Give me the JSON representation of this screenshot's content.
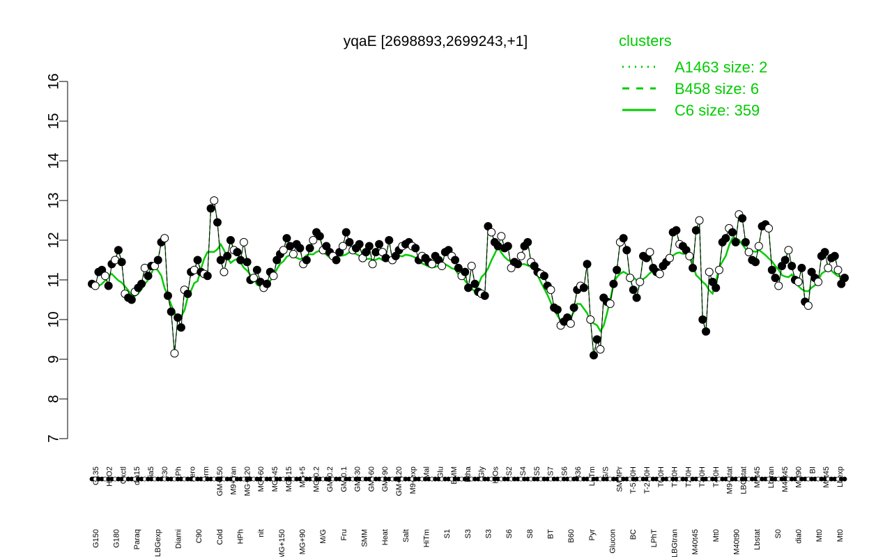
{
  "chart_data": {
    "type": "scatter",
    "title": "yqaE [2698893,2699243,+1]",
    "xlabel": "",
    "ylabel": "",
    "ylim": [
      7,
      16
    ],
    "y_ticks": [
      7,
      8,
      9,
      10,
      11,
      12,
      13,
      14,
      15,
      16
    ],
    "legend": {
      "title": "clusters",
      "placement": "top-right",
      "entries": [
        {
          "label": "A1463 size: 2",
          "style": "dotted",
          "color": "#00cc00"
        },
        {
          "label": "B458 size: 6",
          "style": "dashed",
          "color": "#00cc00"
        },
        {
          "label": "C6 size: 359",
          "style": "solid",
          "color": "#00cc00"
        }
      ]
    },
    "x_labels_upper": [
      "G135",
      "H2O2",
      "Oxctl",
      "dia15",
      "dia5",
      "C30",
      "LPh",
      "aero",
      "ferm",
      "GM+150",
      "M9+tran",
      "MG+120",
      "MG+60",
      "MG+45",
      "MG+15",
      "MG+5",
      "MG-0.2",
      "GM-0.2",
      "GM-0.1",
      "GM+30",
      "GM+60",
      "GM+90",
      "GM+120",
      "M9+exp",
      "Mal",
      "Glu",
      "BMM",
      "Etha",
      "Gly",
      "HiOs",
      "S2",
      "S4",
      "S5",
      "S7",
      "S6",
      "B36",
      "LoTm",
      "G/S",
      "SMMPr",
      "T-5.40H",
      "T-2.40H",
      "T0.0H",
      "T1.0H",
      "T2.0H",
      "T3.0H",
      "T4.0H",
      "M9+stat",
      "LBGstat",
      "M0t45",
      "Lbtran",
      "M40t45",
      "M0t90",
      "BI",
      "M0t45",
      "Lbexp"
    ],
    "x_labels_lower": [
      "G150",
      "G180",
      "Paraq",
      "LBGexp",
      "Diami",
      "C90",
      "Cold",
      "HPh",
      "nit",
      "MG+150",
      "MG+90",
      "M/G",
      "Fru",
      "SMM",
      "Heat",
      "Salt",
      "HiTm",
      "S1",
      "S3",
      "S3",
      "S6",
      "S8",
      "BT",
      "B60",
      "Pyr",
      "Glucon",
      "BC",
      "LPhT",
      "LBGtran",
      "M40t45",
      "Mt0",
      "M40t90",
      "Lbstat",
      "S0",
      "dia0",
      "Mt0",
      "Mt0"
    ],
    "series": [
      {
        "name": "yqaE",
        "values": [
          10.9,
          10.85,
          11.2,
          11.25,
          11.1,
          10.85,
          11.4,
          11.5,
          11.75,
          11.45,
          10.65,
          10.55,
          10.5,
          10.7,
          10.8,
          10.9,
          11.3,
          11.1,
          11.35,
          11.35,
          11.5,
          11.95,
          12.05,
          10.6,
          10.2,
          9.15,
          10.05,
          9.8,
          10.75,
          10.65,
          11.2,
          11.25,
          11.5,
          11.2,
          11.15,
          11.1,
          12.8,
          13.0,
          12.45,
          11.5,
          11.2,
          11.6,
          12.0,
          11.75,
          11.7,
          11.5,
          11.95,
          11.45,
          11.0,
          11.05,
          11.25,
          10.95,
          10.8,
          10.9,
          11.2,
          11.1,
          11.5,
          11.65,
          11.75,
          12.05,
          11.85,
          11.65,
          11.9,
          11.8,
          11.4,
          11.5,
          11.8,
          12.0,
          12.2,
          12.1,
          11.75,
          11.85,
          11.7,
          11.6,
          11.5,
          11.7,
          11.85,
          12.2,
          11.95,
          11.75,
          11.8,
          11.9,
          11.55,
          11.7,
          11.85,
          11.4,
          11.7,
          11.9,
          11.7,
          11.55,
          12.0,
          11.5,
          11.6,
          11.75,
          11.85,
          11.9,
          11.95,
          11.85,
          11.8,
          11.5,
          11.6,
          11.55,
          11.45,
          11.4,
          11.6,
          11.5,
          11.35,
          11.7,
          11.75,
          11.6,
          11.5,
          11.3,
          11.1,
          11.2,
          10.8,
          11.35,
          10.9,
          10.7,
          10.65,
          10.6,
          12.35,
          12.2,
          11.95,
          11.85,
          12.1,
          11.8,
          11.85,
          11.3,
          11.45,
          11.4,
          11.6,
          11.85,
          11.95,
          11.45,
          11.35,
          11.2,
          11.15,
          11.1,
          10.85,
          10.75,
          10.3,
          10.25,
          9.85,
          9.95,
          10.05,
          9.9,
          10.3,
          10.75,
          10.85,
          10.8,
          11.4,
          10.0,
          9.1,
          9.5,
          9.25,
          10.55,
          10.45,
          10.4,
          10.9,
          11.25,
          11.95,
          12.05,
          11.75,
          11.05,
          10.75,
          10.55,
          10.95,
          11.6,
          11.55,
          11.7,
          11.3,
          11.2,
          11.15,
          11.35,
          11.45,
          11.55,
          12.2,
          12.25,
          11.9,
          11.85,
          11.75,
          11.6,
          11.3,
          12.25,
          12.5,
          10.0,
          9.7,
          11.2,
          10.95,
          10.8,
          11.25,
          11.95,
          12.05,
          12.3,
          12.2,
          11.95,
          12.65,
          12.55,
          11.95,
          11.7,
          11.5,
          11.45,
          11.85,
          12.35,
          12.4,
          12.3,
          11.25,
          11.05,
          10.85,
          11.35,
          11.5,
          11.75,
          11.35,
          11.0,
          10.95,
          11.3,
          10.45,
          10.35,
          11.2,
          11.05,
          10.95,
          11.6,
          11.7,
          11.3,
          11.55,
          11.6,
          11.25,
          10.9,
          11.05
        ]
      }
    ]
  }
}
